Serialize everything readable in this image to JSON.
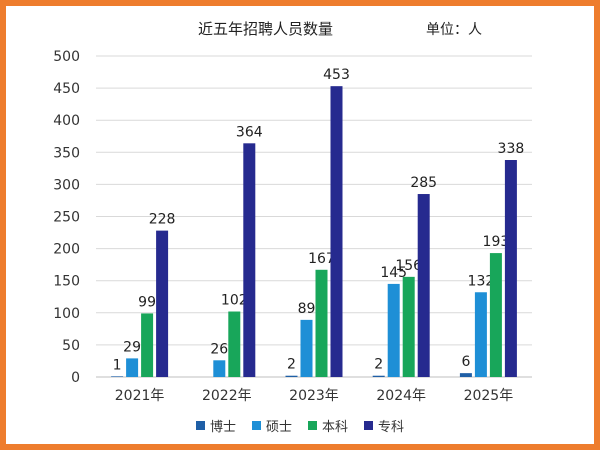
{
  "chart_data": {
    "type": "bar",
    "title": "近五年招聘人员数量",
    "unit_label": "单位：人",
    "categories": [
      "2021年",
      "2022年",
      "2023年",
      "2024年",
      "2025年"
    ],
    "series": [
      {
        "name": "博士",
        "color": "#1f5fa6",
        "values": [
          1,
          0,
          2,
          2,
          6
        ]
      },
      {
        "name": "硕士",
        "color": "#1e8fd6",
        "values": [
          29,
          26,
          89,
          145,
          132
        ]
      },
      {
        "name": "本科",
        "color": "#18a65a",
        "values": [
          99,
          102,
          167,
          156,
          193
        ]
      },
      {
        "name": "专科",
        "color": "#262a8f",
        "values": [
          228,
          364,
          453,
          285,
          338
        ]
      }
    ],
    "value_labels": [
      [
        "1",
        "29",
        "99",
        "228"
      ],
      [
        "",
        "26",
        "102",
        "364"
      ],
      [
        "2",
        "89",
        "167",
        "453"
      ],
      [
        "2",
        "145",
        "156",
        "285"
      ],
      [
        "6",
        "132",
        "193",
        "338"
      ]
    ],
    "yticks": [
      "0",
      "50",
      "100",
      "150",
      "200",
      "250",
      "300",
      "350",
      "400",
      "450",
      "500"
    ],
    "ylim": [
      0,
      500
    ],
    "grid": true,
    "legend_position": "bottom"
  }
}
